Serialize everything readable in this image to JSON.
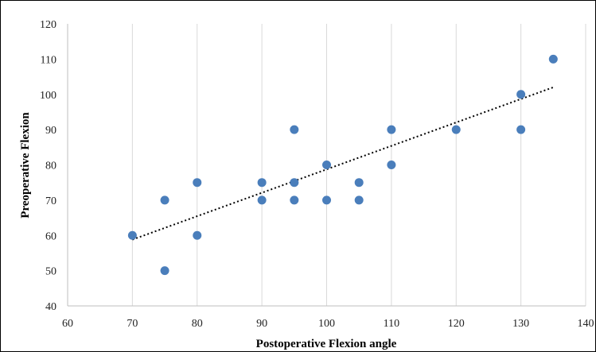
{
  "chart_data": {
    "type": "scatter",
    "title": "",
    "xlabel": "Postoperative Flexion angle",
    "ylabel": "Preoperative Flexion",
    "xlim": [
      60,
      140
    ],
    "ylim": [
      40,
      120
    ],
    "x_ticks": [
      "60",
      "70",
      "80",
      "90",
      "100",
      "110",
      "120",
      "130",
      "140"
    ],
    "y_ticks": [
      "40",
      "50",
      "60",
      "70",
      "80",
      "90",
      "100",
      "110",
      "120"
    ],
    "grid": "vertical",
    "legend": "none",
    "marker_color": "#4a7ebb",
    "series": [
      {
        "points": [
          {
            "x": 70,
            "y": 60
          },
          {
            "x": 75,
            "y": 70
          },
          {
            "x": 75,
            "y": 50
          },
          {
            "x": 80,
            "y": 75
          },
          {
            "x": 80,
            "y": 60
          },
          {
            "x": 90,
            "y": 75
          },
          {
            "x": 90,
            "y": 70
          },
          {
            "x": 95,
            "y": 90
          },
          {
            "x": 95,
            "y": 75
          },
          {
            "x": 95,
            "y": 70
          },
          {
            "x": 100,
            "y": 80
          },
          {
            "x": 100,
            "y": 70
          },
          {
            "x": 105,
            "y": 75
          },
          {
            "x": 105,
            "y": 70
          },
          {
            "x": 110,
            "y": 90
          },
          {
            "x": 110,
            "y": 80
          },
          {
            "x": 120,
            "y": 90
          },
          {
            "x": 130,
            "y": 100
          },
          {
            "x": 130,
            "y": 90
          },
          {
            "x": 135,
            "y": 110
          }
        ]
      }
    ],
    "trendline": {
      "type": "linear",
      "style": "dotted",
      "color": "#000000",
      "x_range": [
        70,
        135
      ],
      "y_range": [
        58.8,
        102
      ]
    }
  }
}
